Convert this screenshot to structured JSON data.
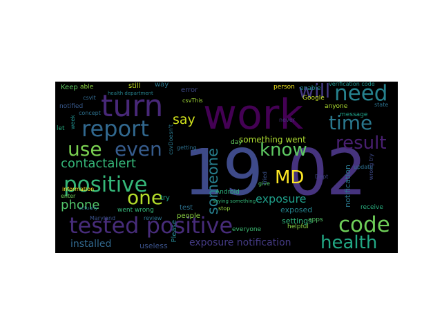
{
  "wordcloud": {
    "background": "#000000",
    "palette": [
      "#440154",
      "#3b528b",
      "#21908d",
      "#5dc963",
      "#fde725"
    ],
    "words": [
      {
        "text": "19",
        "color": "#3e4a89"
      },
      {
        "text": "02",
        "color": "#46337e"
      },
      {
        "text": "work",
        "color": "#440154"
      },
      {
        "text": "turn",
        "color": "#482878"
      },
      {
        "text": "tested positive",
        "color": "#472c7a"
      },
      {
        "text": "positive",
        "color": "#35b779"
      },
      {
        "text": "report",
        "color": "#31688e"
      },
      {
        "text": "need",
        "color": "#26828e"
      },
      {
        "text": "will",
        "color": "#443983"
      },
      {
        "text": "time",
        "color": "#2a788e"
      },
      {
        "text": "code",
        "color": "#6ece58"
      },
      {
        "text": "health",
        "color": "#22a884"
      },
      {
        "text": "use",
        "color": "#7ad151"
      },
      {
        "text": "even",
        "color": "#365c8d"
      },
      {
        "text": "one",
        "color": "#b5de2b"
      },
      {
        "text": "know",
        "color": "#5ec962"
      },
      {
        "text": "result",
        "color": "#481f70"
      },
      {
        "text": "MD",
        "color": "#fde725"
      },
      {
        "text": "say",
        "color": "#d0e11c"
      },
      {
        "text": "someone",
        "color": "#277f8e"
      },
      {
        "text": "contactalert",
        "color": "#35b779"
      },
      {
        "text": "phone",
        "color": "#52c569"
      },
      {
        "text": "exposure",
        "color": "#1f9e89"
      },
      {
        "text": "installed",
        "color": "#31688e"
      },
      {
        "text": "exposure notification",
        "color": "#443a83"
      },
      {
        "text": "something went",
        "color": "#addc30"
      },
      {
        "text": "exposed",
        "color": "#25848e"
      },
      {
        "text": "settings",
        "color": "#2fb47c"
      },
      {
        "text": "notification",
        "color": "#2a788e"
      },
      {
        "text": "went wrong",
        "color": "#35b779"
      },
      {
        "text": "useless",
        "color": "#3b528b"
      },
      {
        "text": "people",
        "color": "#8fd744"
      },
      {
        "text": "test",
        "color": "#2c718e"
      },
      {
        "text": "try",
        "color": "#1fa088"
      },
      {
        "text": "Please",
        "color": "#26828e"
      },
      {
        "text": "Keep",
        "color": "#5ec962"
      },
      {
        "text": "able",
        "color": "#90d743"
      },
      {
        "text": "still",
        "color": "#c2df23"
      },
      {
        "text": "way",
        "color": "#2a778e"
      },
      {
        "text": "error",
        "color": "#3e4989"
      },
      {
        "text": "notified",
        "color": "#38598c"
      },
      {
        "text": "concept",
        "color": "#2d708e"
      },
      {
        "text": "week",
        "color": "#218e8d"
      },
      {
        "text": "information",
        "color": "#fde725"
      },
      {
        "text": "let",
        "color": "#27ad81"
      },
      {
        "text": "enter",
        "color": "#6ece58"
      },
      {
        "text": "Maryland",
        "color": "#3b528b"
      },
      {
        "text": "review",
        "color": "#2c728e"
      },
      {
        "text": "Android",
        "color": "#2db27d"
      },
      {
        "text": "everyone",
        "color": "#3dbc74"
      },
      {
        "text": "helpful",
        "color": "#8bd646"
      },
      {
        "text": "receive",
        "color": "#29af7f"
      },
      {
        "text": "apps",
        "color": "#54c568"
      },
      {
        "text": "update",
        "color": "#2e6f8e"
      },
      {
        "text": "message",
        "color": "#1fa088"
      },
      {
        "text": "anyone",
        "color": "#addc30"
      },
      {
        "text": "Google",
        "color": "#c0df25"
      },
      {
        "text": "enable",
        "color": "#21908d"
      },
      {
        "text": "person",
        "color": "#f1e51d"
      },
      {
        "text": "verification code",
        "color": "#20928c"
      },
      {
        "text": "stop",
        "color": "#93d741"
      },
      {
        "text": "give",
        "color": "#52c569"
      },
      {
        "text": "day",
        "color": "#65cb5e"
      },
      {
        "text": "Dept",
        "color": "#414487"
      },
      {
        "text": "tried",
        "color": "#3b528b"
      },
      {
        "text": "never",
        "color": "#46337e"
      },
      {
        "text": "state",
        "color": "#2c728e"
      },
      {
        "text": "wrong try",
        "color": "#3e4a89"
      },
      {
        "text": "csvIt",
        "color": "#31688e"
      },
      {
        "text": "csvDoesn't",
        "color": "#2a788e"
      },
      {
        "text": "csvThis",
        "color": "#a2da37"
      },
      {
        "text": "health department",
        "color": "#26828e"
      },
      {
        "text": "getting",
        "color": "#2d708e"
      },
      {
        "text": "saying something",
        "color": "#35b779"
      },
      {
        "text": "actually",
        "color": "#2c728e"
      }
    ]
  }
}
